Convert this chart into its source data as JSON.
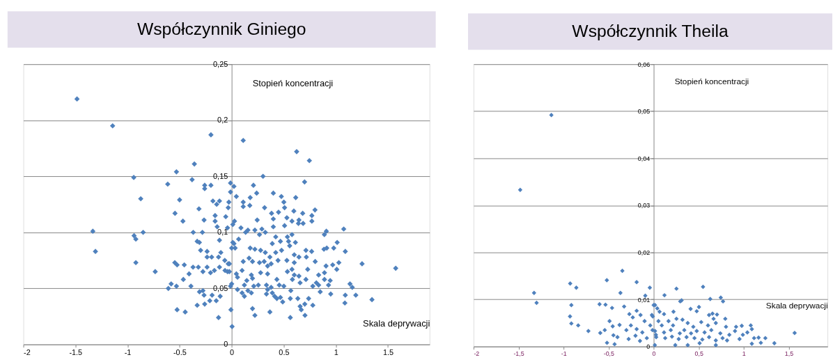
{
  "chart_data": [
    {
      "type": "scatter",
      "title": "Współczynnik Giniego",
      "xlabel": "Skala deprywacji",
      "ylabel": "Stopień koncentracji",
      "marker": "diamond",
      "grid": "y",
      "xlim": [
        -2,
        1.9
      ],
      "xticks": [
        {
          "value": -2,
          "label": "-2"
        },
        {
          "value": -1.5,
          "label": "-1.5"
        },
        {
          "value": -1,
          "label": "-1"
        },
        {
          "value": -0.5,
          "label": "-0.5"
        },
        0,
        {
          "value": 0.5,
          "label": "0.5"
        },
        1,
        {
          "value": 1.5,
          "label": "1.5"
        }
      ],
      "ylim": [
        0,
        0.25
      ],
      "yticks": [
        0,
        {
          "value": 0.05,
          "label": "0,05"
        },
        {
          "value": 0.1,
          "label": "0,1"
        },
        {
          "value": 0.15,
          "label": "0,15"
        },
        {
          "value": 0.2,
          "label": "0,2"
        },
        {
          "value": 0.25,
          "label": "0,25"
        }
      ],
      "series": [
        {
          "color": "#4f81bd",
          "x": [
            -1.485,
            -1.143,
            -0.199,
            -0.358,
            -0.53,
            -0.94,
            -0.38,
            -0.614,
            -0.259,
            -0.199,
            -0.259,
            -0.873,
            -0.5,
            -0.18,
            -0.117,
            -0.144,
            -0.314,
            -0.544,
            -0.468,
            -0.265,
            -0.159,
            -0.159,
            -0.139,
            -0.057,
            -0.04,
            -0.033,
            -0.027,
            -0.011,
            -0.011,
            -1.333,
            -0.937,
            -0.92,
            -0.85,
            -1.308,
            -0.92,
            -0.734,
            -0.369,
            -0.281,
            -0.331,
            -0.31,
            -0.298,
            -0.236,
            -0.236,
            -0.192,
            -0.117,
            -0.104,
            -0.126,
            -0.066,
            -0.022,
            0,
            0.011,
            -0.546,
            -0.524,
            -0.455,
            -0.371,
            -0.32,
            -0.276,
            -0.236,
            -0.203,
            -0.166,
            -0.117,
            -0.064,
            -0.04,
            -0.409,
            -0.464,
            -0.581,
            -0.608,
            -0.53,
            -0.391,
            -0.309,
            -0.276,
            -0.265,
            -0.188,
            -0.11,
            -0.21,
            -0.148,
            -0.331,
            -0.259,
            -0.524,
            -0.446,
            -0.126,
            -0.007,
            0.004,
            -0.011,
            0,
            0.111,
            0.624,
            0.746,
            0.301,
            0.7,
            0.022,
            0.209,
            0.24,
            0.4,
            0.477,
            0.045,
            0.615,
            0.111,
            0.178,
            0.501,
            0.111,
            0.174,
            0.316,
            0.508,
            0.8,
            0.45,
            0.597,
            0.383,
            0.682,
            0.77,
            0.77,
            0.245,
            0.53,
            0.579,
            0.646,
            0.686,
            0.641,
            0.4,
            0.027,
            0.011,
            0.089,
            0.508,
            0.4,
            0.156,
            0.223,
            0.29,
            0.323,
            0.267,
            0.134,
            0.067,
            0.022,
            0.033,
            0.423,
            0.535,
            0.579,
            0.468,
            0.546,
            0.612,
            0.89,
            0.909,
            1.076,
            1.013,
            0.913,
            0.98,
            0.886,
            1.091,
            0.768,
            0.713,
            0.178,
            0.223,
            0.278,
            0.323,
            0.39,
            0.423,
            0.479,
            0.557,
            0.601,
            0.646,
            0.717,
            0.367,
            0.167,
            0.111,
            0.2,
            0.267,
            0.312,
            0.445,
            0.53,
            0.601,
            0.802,
            0.97,
            1.029,
            1.252,
            1.575,
            0.906,
            1.009,
            0.73,
            -0.033,
            -0.022,
            0.1,
            0.345,
            0.379,
            0.579,
            0.535,
            0.045,
            0.189,
            0.278,
            0.345,
            0.601,
            0.056,
            0.2,
            0.145,
            0.434,
            0.583,
            0.646,
            0.713,
            0.835,
            0.891,
            0.657,
            0.813,
            0.891,
            0.946,
            0.93,
            1.136,
            1.158,
            0.122,
            0.212,
            0.256,
            0.334,
            0.379,
            0.457,
            0.501,
            0.779,
            0.835,
            0.056,
            0.1,
            0.156,
            0.189,
            0.345,
            0.39,
            0.412,
            0.468,
            0.568,
            0.85,
            0.951,
            1.091,
            1.192,
            1.347,
            0.122,
            0.334,
            0.434,
            0.49,
            0.563,
            0.635,
            0.739,
            0.702,
            0.657,
            0.779,
            0.668,
            1.087,
            0.2,
            0.367,
            0.223,
            0.563,
            0.704
          ],
          "values": [
            0.219,
            0.195,
            0.187,
            0.161,
            0.154,
            0.149,
            0.147,
            0.143,
            0.142,
            0.142,
            0.139,
            0.13,
            0.129,
            0.128,
            0.128,
            0.125,
            0.121,
            0.117,
            0.11,
            0.111,
            0.115,
            0.11,
            0.105,
            0.114,
            0.104,
            0.122,
            0.127,
            0.136,
            0.144,
            0.101,
            0.097,
            0.094,
            0.1,
            0.083,
            0.073,
            0.065,
            0.1,
            0.1,
            0.092,
            0.091,
            0.084,
            0.083,
            0.078,
            0.078,
            0.093,
            0.082,
            0.078,
            0.075,
            0.072,
            0.086,
            0.091,
            0.073,
            0.071,
            0.071,
            0.069,
            0.069,
            0.065,
            0.069,
            0.064,
            0.066,
            0.069,
            0.066,
            0.065,
            0.063,
            0.058,
            0.054,
            0.05,
            0.052,
            0.052,
            0.047,
            0.048,
            0.044,
            0.044,
            0.043,
            0.039,
            0.039,
            0.035,
            0.036,
            0.031,
            0.029,
            0.024,
            0.031,
            0.016,
            0.052,
            0.054,
            0.182,
            0.172,
            0.164,
            0.15,
            0.145,
            0.141,
            0.142,
            0.135,
            0.135,
            0.132,
            0.132,
            0.131,
            0.127,
            0.131,
            0.127,
            0.123,
            0.124,
            0.122,
            0.122,
            0.12,
            0.118,
            0.119,
            0.117,
            0.117,
            0.115,
            0.11,
            0.111,
            0.113,
            0.11,
            0.111,
            0.108,
            0.108,
            0.112,
            0.11,
            0.107,
            0.104,
            0.106,
            0.105,
            0.102,
            0.102,
            0.103,
            0.1,
            0.098,
            0.1,
            0.094,
            0.09,
            0.086,
            0.096,
            0.096,
            0.098,
            0.092,
            0.092,
            0.091,
            0.098,
            0.101,
            0.103,
            0.091,
            0.086,
            0.086,
            0.085,
            0.083,
            0.083,
            0.084,
            0.086,
            0.085,
            0.084,
            0.082,
            0.09,
            0.082,
            0.084,
            0.088,
            0.08,
            0.078,
            0.078,
            0.078,
            0.077,
            0.074,
            0.074,
            0.073,
            0.074,
            0.075,
            0.075,
            0.073,
            0.074,
            0.071,
            0.073,
            0.072,
            0.068,
            0.07,
            0.067,
            0.067,
            0.072,
            0.065,
            0.066,
            0.07,
            0.072,
            0.067,
            0.065,
            0.063,
            0.062,
            0.064,
            0.063,
            0.062,
            0.06,
            0.059,
            0.057,
            0.058,
            0.058,
            0.061,
            0.058,
            0.062,
            0.064,
            0.055,
            0.055,
            0.058,
            0.057,
            0.053,
            0.054,
            0.051,
            0.053,
            0.052,
            0.053,
            0.053,
            0.051,
            0.053,
            0.052,
            0.052,
            0.053,
            0.049,
            0.046,
            0.048,
            0.046,
            0.049,
            0.046,
            0.043,
            0.042,
            0.048,
            0.047,
            0.045,
            0.044,
            0.044,
            0.04,
            0.043,
            0.045,
            0.041,
            0.038,
            0.041,
            0.041,
            0.041,
            0.036,
            0.034,
            0.035,
            0.031,
            0.037,
            0.032,
            0.029,
            0.026,
            0.024,
            0.026
          ]
        }
      ]
    },
    {
      "type": "scatter",
      "title": "Współczynnik Theila",
      "xlabel": "Skala deprywacji",
      "ylabel": "Stopień koncentracji",
      "marker": "diamond",
      "grid": "y",
      "xlim": [
        -2,
        1.93
      ],
      "xticks": [
        {
          "value": -2,
          "label": "-2"
        },
        {
          "value": -1.5,
          "label": "-1,5"
        },
        {
          "value": -1,
          "label": "-1"
        },
        {
          "value": -0.5,
          "label": "-0,5"
        },
        0,
        {
          "value": 0.5,
          "label": "0,5"
        },
        1,
        {
          "value": 1.5,
          "label": "1,5"
        }
      ],
      "ylim": [
        0,
        0.06
      ],
      "yticks": [
        0,
        {
          "value": 0.01,
          "label": "0,01"
        },
        {
          "value": 0.02,
          "label": "0,02"
        },
        {
          "value": 0.03,
          "label": "0,03"
        },
        {
          "value": 0.04,
          "label": "0,04"
        },
        {
          "value": 0.05,
          "label": "0,05"
        },
        {
          "value": 0.06,
          "label": "0,06"
        }
      ],
      "series": [
        {
          "color": "#4f81bd",
          "x": [
            -1.136,
            -1.482,
            -1.328,
            -1.3,
            -0.927,
            -0.859,
            -0.914,
            -0.929,
            -0.914,
            -0.838,
            -0.725,
            -0.348,
            -0.52,
            -0.369,
            -0.189,
            -0.043,
            -0.093,
            -0.601,
            -0.535,
            -0.462,
            -0.328,
            -0.49,
            -0.455,
            -0.379,
            -0.447,
            -0.402,
            -0.434,
            -0.593,
            -0.543,
            -0.518,
            -0.27,
            -0.232,
            -0.189,
            -0.146,
            -0.101,
            -0.253,
            -0.189,
            -0.303,
            -0.278,
            -0.202,
            -0.126,
            -0.076,
            -0.152,
            -0.038,
            0,
            -0.02,
            -0.013,
            0.013,
            0.025,
            0.12,
            0.253,
            0.548,
            0.31,
            0.295,
            0.628,
            0.745,
            0.77,
            0.015,
            0.04,
            0.065,
            0.115,
            0.22,
            0.41,
            0.503,
            0.478,
            0.653,
            0.703,
            0.795,
            0.615,
            0.32,
            0.253,
            0.165,
            0.053,
            -0.01,
            0.09,
            0.215,
            0.378,
            0.44,
            0.528,
            0.603,
            0.69,
            0.803,
            0.915,
            0.978,
            1.078,
            1.09,
            0.903,
            1.04,
            1.565,
            0.015,
            0.115,
            0.19,
            0.29,
            0.34,
            0.415,
            0.478,
            0.565,
            0.64,
            0.74,
            0.84,
            0.028,
            0.128,
            0.203,
            0.278,
            0.365,
            0.453,
            0.54,
            0.615,
            0.69,
            0.765,
            0.815,
            0.953,
            0.99,
            1.115,
            1.165,
            1.24,
            1.19,
            1.09,
            1.34,
            0.24,
            0.378,
            0.69,
            0.51,
            0.665
          ],
          "values": [
            0.0492,
            0.0333,
            0.0114,
            0.0093,
            0.0134,
            0.0125,
            0.0088,
            0.0064,
            0.0049,
            0.0045,
            0.0033,
            0.0161,
            0.0141,
            0.0114,
            0.0137,
            0.0125,
            0.0108,
            0.009,
            0.0089,
            0.0082,
            0.0085,
            0.0054,
            0.0043,
            0.0046,
            0.0024,
            0.002,
            0.0005,
            0.0029,
            0.0035,
            0.0008,
            0.0069,
            0.0062,
            0.0076,
            0.0067,
            0.0054,
            0.0045,
            0.0037,
            0.0035,
            0.0016,
            0.0023,
            0.003,
            0.0018,
            0.0012,
            0.0045,
            0.0088,
            0.0067,
            0.0035,
            0.0003,
            0.0025,
            0.0109,
            0.0123,
            0.0127,
            0.0098,
            0.0096,
            0.0101,
            0.0104,
            0.0096,
            0.0088,
            0.0081,
            0.0074,
            0.0069,
            0.0074,
            0.008,
            0.0084,
            0.0075,
            0.007,
            0.0068,
            0.0059,
            0.0067,
            0.0057,
            0.0059,
            0.0054,
            0.0054,
            0.0064,
            0.0045,
            0.0045,
            0.005,
            0.0042,
            0.0052,
            0.0045,
            0.005,
            0.0042,
            0.0042,
            0.0044,
            0.0045,
            0.0037,
            0.0033,
            0.003,
            0.0029,
            0.0033,
            0.003,
            0.0035,
            0.0028,
            0.0035,
            0.0028,
            0.0033,
            0.003,
            0.0035,
            0.0028,
            0.0025,
            0.002,
            0.0018,
            0.0021,
            0.0016,
            0.002,
            0.0018,
            0.0015,
            0.002,
            0.0013,
            0.0018,
            0.0013,
            0.0016,
            0.0025,
            0.0018,
            0.0019,
            0.0018,
            0.0008,
            0.0006,
            0.0007,
            0.0003,
            0.0003,
            0.0003,
            0.0007,
            0.0059
          ]
        }
      ]
    }
  ]
}
